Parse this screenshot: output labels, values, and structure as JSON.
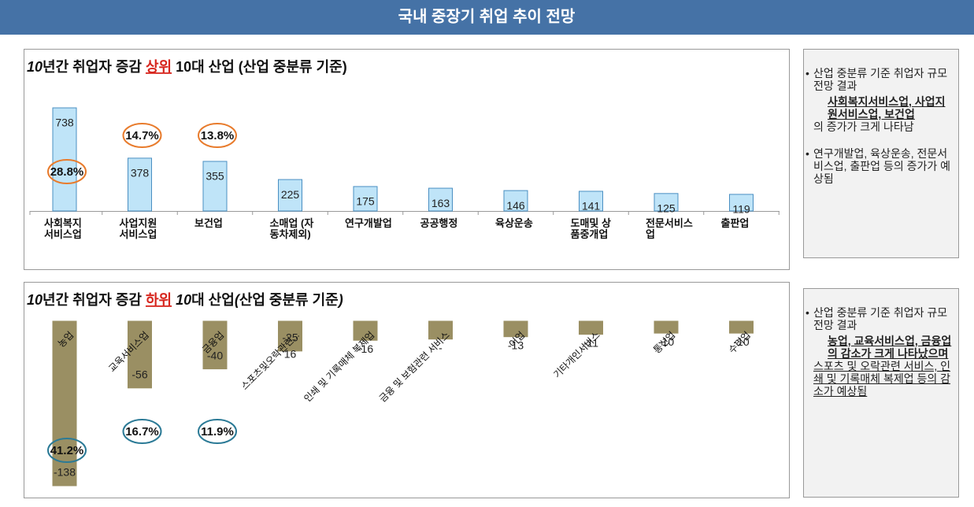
{
  "header": {
    "title": "국내 중장기 취업 추이 전망"
  },
  "chart_data": [
    {
      "type": "bar",
      "title_parts": [
        {
          "text": "10",
          "style": "italic"
        },
        {
          "text": "년간 취업자 증감 ",
          "style": "plain"
        },
        {
          "text": "상위",
          "style": "highlight"
        },
        {
          "text": " 10대 산업 (산업 중분류 기준)",
          "style": "plain"
        }
      ],
      "categories": [
        "사회복지 서비스업",
        "사업지원 서비스업",
        "보건업",
        "소매업 (자동차제외)",
        "연구개발업",
        "공공행정",
        "육상운송",
        "도매및 상품중개업",
        "전문서비스업",
        "출판업"
      ],
      "values": [
        738,
        378,
        355,
        225,
        175,
        163,
        146,
        141,
        125,
        119
      ],
      "share_labels": [
        "28.8%",
        "14.7%",
        "13.8%",
        null,
        null,
        null,
        null,
        null,
        null,
        null
      ],
      "color": "#bfe4f8",
      "stroke": "#4a8fc2",
      "share_color": "#e87b2c",
      "ylim": [
        0,
        800
      ]
    },
    {
      "type": "bar",
      "title_parts": [
        {
          "text": "10",
          "style": "italic"
        },
        {
          "text": "년간 취업자 증감 ",
          "style": "plain"
        },
        {
          "text": "하위",
          "style": "highlight"
        },
        {
          "text": " 10",
          "style": "italic"
        },
        {
          "text": "대 산업",
          "style": "plain"
        },
        {
          "text": "(",
          "style": "italic"
        },
        {
          "text": "산업 중분류 기준",
          "style": "plain"
        },
        {
          "text": ")",
          "style": "italic"
        }
      ],
      "categories": [
        "농업",
        "교육서비스업",
        "금융업",
        "스포츠및오락관련...",
        "인쇄 및 기록매체 복제업",
        "금융 및 보험관련 서비스",
        "어업",
        "기타개인서비스",
        "통신업",
        "수리업"
      ],
      "values": [
        -138,
        -56,
        -40,
        -25,
        -16,
        -15,
        -13,
        -11,
        -10,
        -10
      ],
      "value_labels": [
        "-138",
        "-56",
        "-40",
        "-25",
        "-16",
        "-",
        "-13",
        "-11",
        "-10",
        "-10"
      ],
      "annotations": [
        "16"
      ],
      "share_labels": [
        "41.2%",
        "16.7%",
        "11.9%",
        null,
        null,
        null,
        null,
        null,
        null,
        null
      ],
      "color": "#9a8f63",
      "stroke": "#9a8f63",
      "share_color": "#2b7a96",
      "ylim": [
        -140,
        0
      ]
    }
  ],
  "notes": [
    {
      "items": [
        {
          "parts": [
            {
              "text": "산업 중분류 기준 취업자 규모 전망 결과",
              "style": "plain"
            },
            {
              "text": "사회복지서비스업, 사업지원서비스업, 보건업",
              "style": "bold-block"
            },
            {
              "text": "의 증가가 크게 나타남",
              "style": "plain"
            }
          ]
        },
        {
          "parts": [
            {
              "text": "연구개발업, 육상운송, 전문서비스업, 출판업 등의 증가가 예상됨",
              "style": "plain"
            }
          ]
        }
      ]
    },
    {
      "items": [
        {
          "parts": [
            {
              "text": "산업 중분류 기준 취업자 규모 전망 결과",
              "style": "plain"
            },
            {
              "text": "농업, 교육서비스업, 금융업의 감소가 크게 나타났으며",
              "style": "bold-block"
            },
            {
              "text": " 스포츠 및 오락관련 서비스, 인쇄 및 기록매체 복제업 등의 감소가 예상됨",
              "style": "underline"
            }
          ]
        }
      ]
    }
  ]
}
